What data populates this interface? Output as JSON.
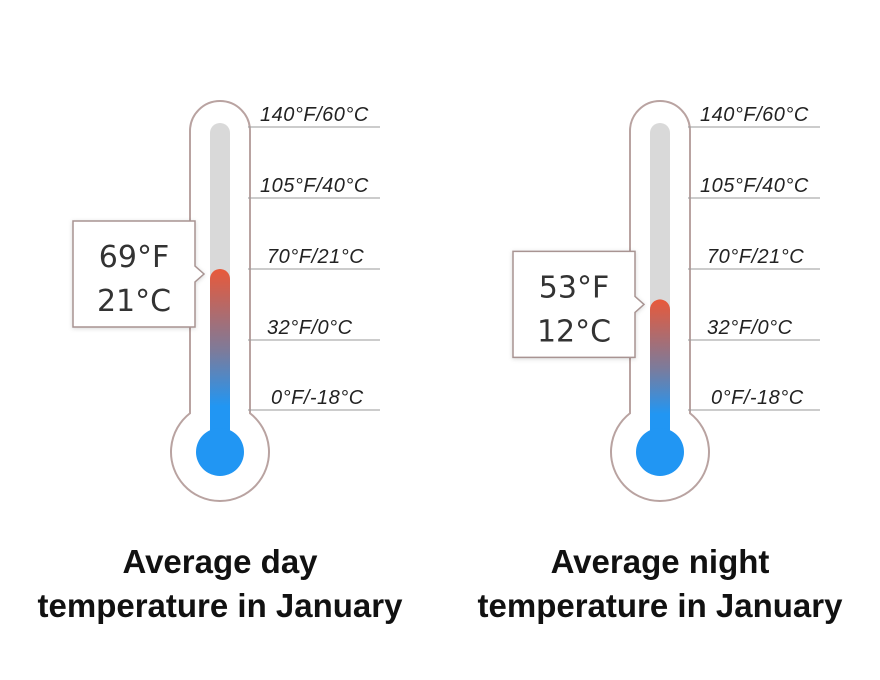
{
  "thermometers": [
    {
      "reading_f": "69°F",
      "reading_c": "21°C",
      "value_c": 21,
      "caption_line1": "Average day",
      "caption_line2": "temperature in January"
    },
    {
      "reading_f": "53°F",
      "reading_c": "12°C",
      "value_c": 12,
      "caption_line1": "Average night",
      "caption_line2": "temperature in January"
    }
  ],
  "scale": [
    {
      "label": "140°F/60°C",
      "value_c": 60
    },
    {
      "label": "105°F/40°C",
      "value_c": 40
    },
    {
      "label": "70°F/21°C",
      "value_c": 21
    },
    {
      "label": "32°F/0°C",
      "value_c": 0
    },
    {
      "label": "0°F/-18°C",
      "value_c": -18
    }
  ],
  "colors": {
    "outline": "#b9a3a1",
    "track": "#d9d9d9",
    "tick_line": "#9a9a9a",
    "cold": "#2196f3",
    "mid": "#7c7b9b",
    "warm": "#e8593a",
    "callout_border": "#a89492"
  }
}
